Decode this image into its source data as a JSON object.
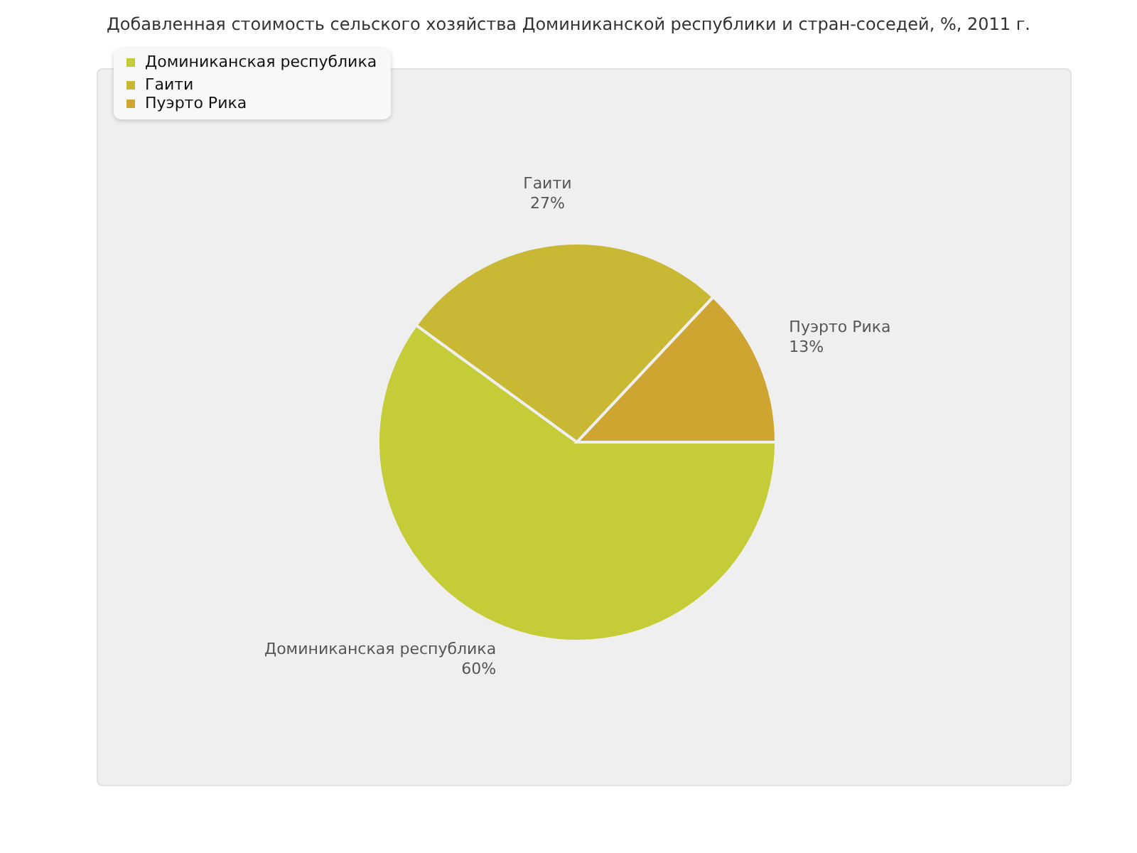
{
  "chart_data": {
    "type": "pie",
    "title": "Добавленная стоимость сельского хозяйства Доминиканской республики и стран-соседей, %, 2011 г.",
    "categories": [
      "Доминиканская республика",
      "Гаити",
      "Пуэрто Рика"
    ],
    "values": [
      60,
      27,
      13
    ],
    "colors": [
      "#c4cc38",
      "#c8b834",
      "#cfa532"
    ],
    "value_labels": [
      "60%",
      "27%",
      "13%"
    ],
    "legend": "top left"
  }
}
